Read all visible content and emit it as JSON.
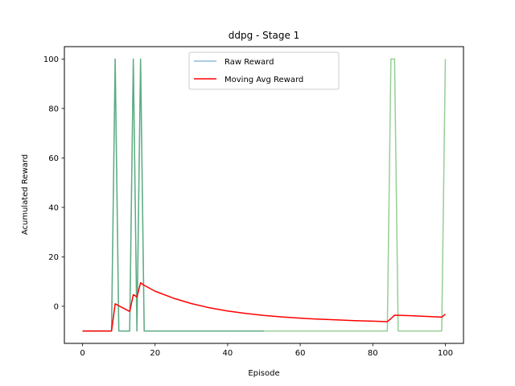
{
  "chart_data": {
    "type": "line",
    "title": "ddpg - Stage 1",
    "xlabel": "Episode",
    "ylabel": "Acumulated Reward",
    "xlim": [
      -5,
      105
    ],
    "ylim": [
      -15,
      105
    ],
    "xticks": [
      0,
      20,
      40,
      60,
      80,
      100
    ],
    "yticks": [
      0,
      20,
      40,
      60,
      80,
      100
    ],
    "grid": false,
    "legend_position": "upper-center",
    "series": [
      {
        "name": "Raw Reward",
        "color": "#1f77b4",
        "opacity": 0.5,
        "x": [
          0,
          8,
          9,
          10,
          13,
          14,
          15,
          16,
          17,
          50
        ],
        "y": [
          -10,
          -10,
          100,
          -10,
          -10,
          100,
          -10,
          100,
          -10,
          -10
        ]
      },
      {
        "name": "",
        "color": "#2ca02c",
        "opacity": 0.5,
        "x": [
          0,
          8,
          9,
          10,
          13,
          14,
          15,
          16,
          17,
          84,
          85,
          86,
          87,
          99,
          100
        ],
        "y": [
          -10,
          -10,
          100,
          -10,
          -10,
          100,
          -10,
          100,
          -10,
          -10,
          100,
          100,
          -10,
          -10,
          100
        ]
      },
      {
        "name": "Moving Avg Reward",
        "color": "#ff0000",
        "opacity": 1,
        "x": [
          0,
          8,
          9,
          13,
          14,
          15,
          16,
          17,
          20,
          25,
          30,
          35,
          40,
          45,
          50,
          55,
          60,
          65,
          70,
          75,
          80,
          84,
          85,
          86,
          90,
          95,
          99,
          100
        ],
        "y": [
          -10,
          -10,
          1,
          -2.1,
          4.7,
          3.8,
          9.5,
          8.5,
          6.1,
          3.3,
          1.1,
          -0.6,
          -1.9,
          -2.9,
          -3.7,
          -4.3,
          -4.8,
          -5.2,
          -5.5,
          -5.8,
          -6.0,
          -6.2,
          -5.0,
          -3.6,
          -3.8,
          -4.1,
          -4.4,
          -3.2
        ]
      }
    ]
  }
}
